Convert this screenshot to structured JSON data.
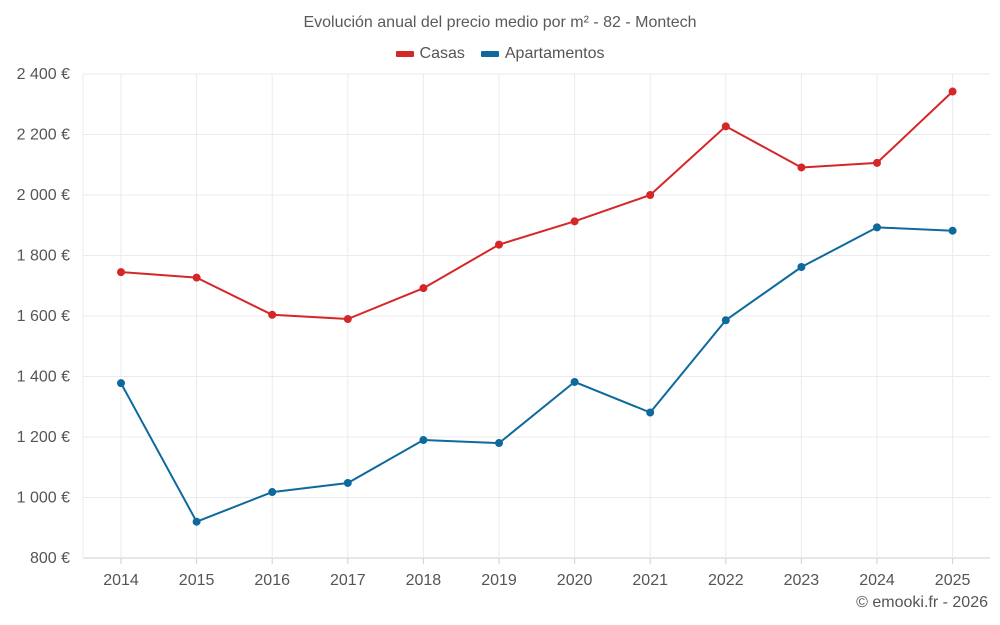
{
  "chart_data": {
    "type": "line",
    "title": "Evolución anual del precio medio por m² - 82 - Montech",
    "x": [
      "2014",
      "2015",
      "2016",
      "2017",
      "2018",
      "2019",
      "2020",
      "2021",
      "2022",
      "2023",
      "2024",
      "2025"
    ],
    "series": [
      {
        "name": "Casas",
        "color": "#d62728",
        "values": [
          1745,
          1727,
          1604,
          1590,
          1692,
          1836,
          1913,
          2000,
          2227,
          2091,
          2106,
          2342
        ]
      },
      {
        "name": "Apartamentos",
        "color": "#0e6a9c",
        "values": [
          1378,
          920,
          1018,
          1048,
          1190,
          1180,
          1382,
          1281,
          1586,
          1762,
          1893,
          1882
        ]
      }
    ],
    "ylim": [
      800,
      2400
    ],
    "yticks": [
      800,
      1000,
      1200,
      1400,
      1600,
      1800,
      2000,
      2200,
      2400
    ],
    "ytick_labels": [
      "800 €",
      "1 000 €",
      "1 200 €",
      "1 400 €",
      "1 600 €",
      "1 800 €",
      "2 000 €",
      "2 200 €",
      "2 400 €"
    ],
    "xlabel": "",
    "ylabel": "",
    "grid": true,
    "legend_position": "top-center"
  },
  "credit": "© emooki.fr - 2026"
}
